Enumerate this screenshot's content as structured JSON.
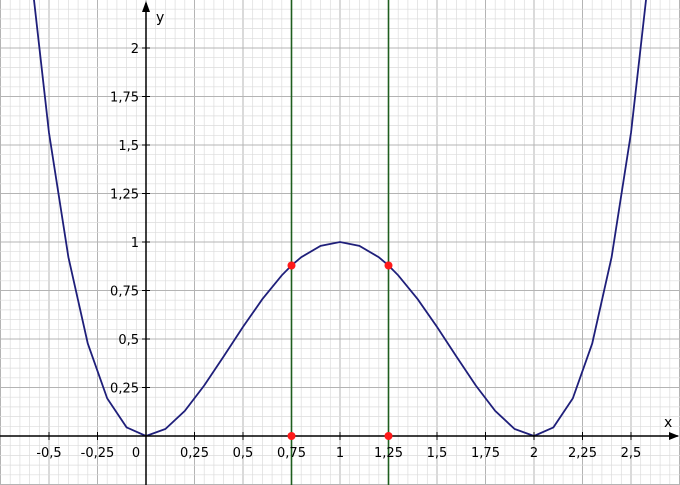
{
  "chart_data": {
    "type": "line",
    "xlabel": "x",
    "ylabel": "y",
    "xlim": [
      -0.75,
      2.75
    ],
    "ylim": [
      -0.125,
      2.25
    ],
    "grid": true,
    "x_ticks": [
      {
        "value": -0.5,
        "label": "-0,5"
      },
      {
        "value": -0.25,
        "label": "-0,25"
      },
      {
        "value": 0.25,
        "label": "0,25"
      },
      {
        "value": 0.5,
        "label": "0,5"
      },
      {
        "value": 0.75,
        "label": "0,75"
      },
      {
        "value": 1,
        "label": "1"
      },
      {
        "value": 1.25,
        "label": "1,25"
      },
      {
        "value": 1.5,
        "label": "1,5"
      },
      {
        "value": 1.75,
        "label": "1,75"
      },
      {
        "value": 2,
        "label": "2"
      },
      {
        "value": 2.25,
        "label": "2,25"
      },
      {
        "value": 2.5,
        "label": "2,5"
      }
    ],
    "origin_label": "0",
    "y_ticks": [
      {
        "value": 0.25,
        "label": "0,25"
      },
      {
        "value": 0.5,
        "label": "0,5"
      },
      {
        "value": 0.75,
        "label": "0,75"
      },
      {
        "value": 1,
        "label": "1"
      },
      {
        "value": 1.25,
        "label": "1,25"
      },
      {
        "value": 1.5,
        "label": "1,5"
      },
      {
        "value": 1.75,
        "label": "1,75"
      },
      {
        "value": 2,
        "label": "2"
      }
    ],
    "series": [
      {
        "color": "#1f1f7a",
        "points": [
          [
            -0.58,
            2.27
          ],
          [
            -0.5,
            1.5625
          ],
          [
            -0.4,
            0.9216
          ],
          [
            -0.3,
            0.4761
          ],
          [
            -0.2,
            0.1936
          ],
          [
            -0.1,
            0.0441
          ],
          [
            0,
            0
          ],
          [
            0.1,
            0.0361
          ],
          [
            0.2,
            0.1296
          ],
          [
            0.3,
            0.2601
          ],
          [
            0.4,
            0.4096
          ],
          [
            0.5,
            0.5625
          ],
          [
            0.6,
            0.7056
          ],
          [
            0.7,
            0.8281
          ],
          [
            0.75,
            0.8789
          ],
          [
            0.8,
            0.9216
          ],
          [
            0.9,
            0.9801
          ],
          [
            1,
            1
          ],
          [
            1.1,
            0.9801
          ],
          [
            1.2,
            0.9216
          ],
          [
            1.25,
            0.8789
          ],
          [
            1.3,
            0.8281
          ],
          [
            1.4,
            0.7056
          ],
          [
            1.5,
            0.5625
          ],
          [
            1.6,
            0.4096
          ],
          [
            1.7,
            0.2601
          ],
          [
            1.8,
            0.1296
          ],
          [
            1.9,
            0.0361
          ],
          [
            2,
            0
          ],
          [
            2.1,
            0.0441
          ],
          [
            2.2,
            0.1936
          ],
          [
            2.3,
            0.4761
          ],
          [
            2.4,
            0.9216
          ],
          [
            2.5,
            1.5625
          ],
          [
            2.58,
            2.27
          ]
        ]
      }
    ],
    "vertical_lines": [
      {
        "x": 0.75,
        "color": "#1e5e1e"
      },
      {
        "x": 1.25,
        "color": "#1e5e1e"
      }
    ],
    "highlight_points": [
      {
        "x": 0.75,
        "y": 0.8789,
        "color": "#ff1a1a"
      },
      {
        "x": 1.25,
        "y": 0.8789,
        "color": "#ff1a1a"
      },
      {
        "x": 0.75,
        "y": 0,
        "color": "#ff1a1a"
      },
      {
        "x": 1.25,
        "y": 0,
        "color": "#ff1a1a"
      }
    ],
    "colors": {
      "grid_minor": "#dcdcdc",
      "grid_major": "#b4b4b4",
      "axis": "#000000"
    }
  }
}
